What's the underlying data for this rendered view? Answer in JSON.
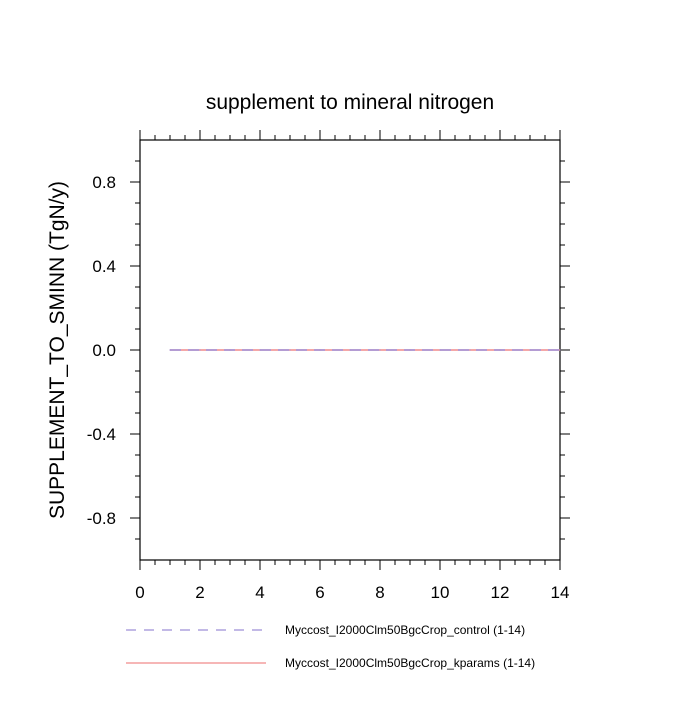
{
  "chart_data": {
    "type": "line",
    "title": "supplement to mineral nitrogen",
    "xlabel": "",
    "ylabel": "SUPPLEMENT_TO_SMINN  (TgN/y)",
    "xlim": [
      0,
      14
    ],
    "ylim": [
      -1.0,
      1.0
    ],
    "x_ticks": [
      0,
      2,
      4,
      6,
      8,
      10,
      12,
      14
    ],
    "y_ticks": [
      -0.8,
      -0.4,
      0.0,
      0.4,
      0.8
    ],
    "x_tick_labels": [
      "0",
      "2",
      "4",
      "6",
      "8",
      "10",
      "12",
      "14"
    ],
    "y_tick_labels": [
      "-0.8",
      "-0.4",
      "0.0",
      "0.4",
      "0.8"
    ],
    "grid": false,
    "legend_position": "bottom",
    "x": [
      1,
      2,
      3,
      4,
      5,
      6,
      7,
      8,
      9,
      10,
      11,
      12,
      13,
      14
    ],
    "series": [
      {
        "name": "Myccost_I2000Clm50BgcCrop_control (1-14)",
        "values": [
          0,
          0,
          0,
          0,
          0,
          0,
          0,
          0,
          0,
          0,
          0,
          0,
          0,
          0
        ],
        "color": "#9e8fd8",
        "style": "dashed"
      },
      {
        "name": "Myccost_I2000Clm50BgcCrop_kparams (1-14)",
        "values": [
          0,
          0,
          0,
          0,
          0,
          0,
          0,
          0,
          0,
          0,
          0,
          0,
          0,
          0
        ],
        "color": "#f08a8a",
        "style": "solid"
      }
    ]
  }
}
